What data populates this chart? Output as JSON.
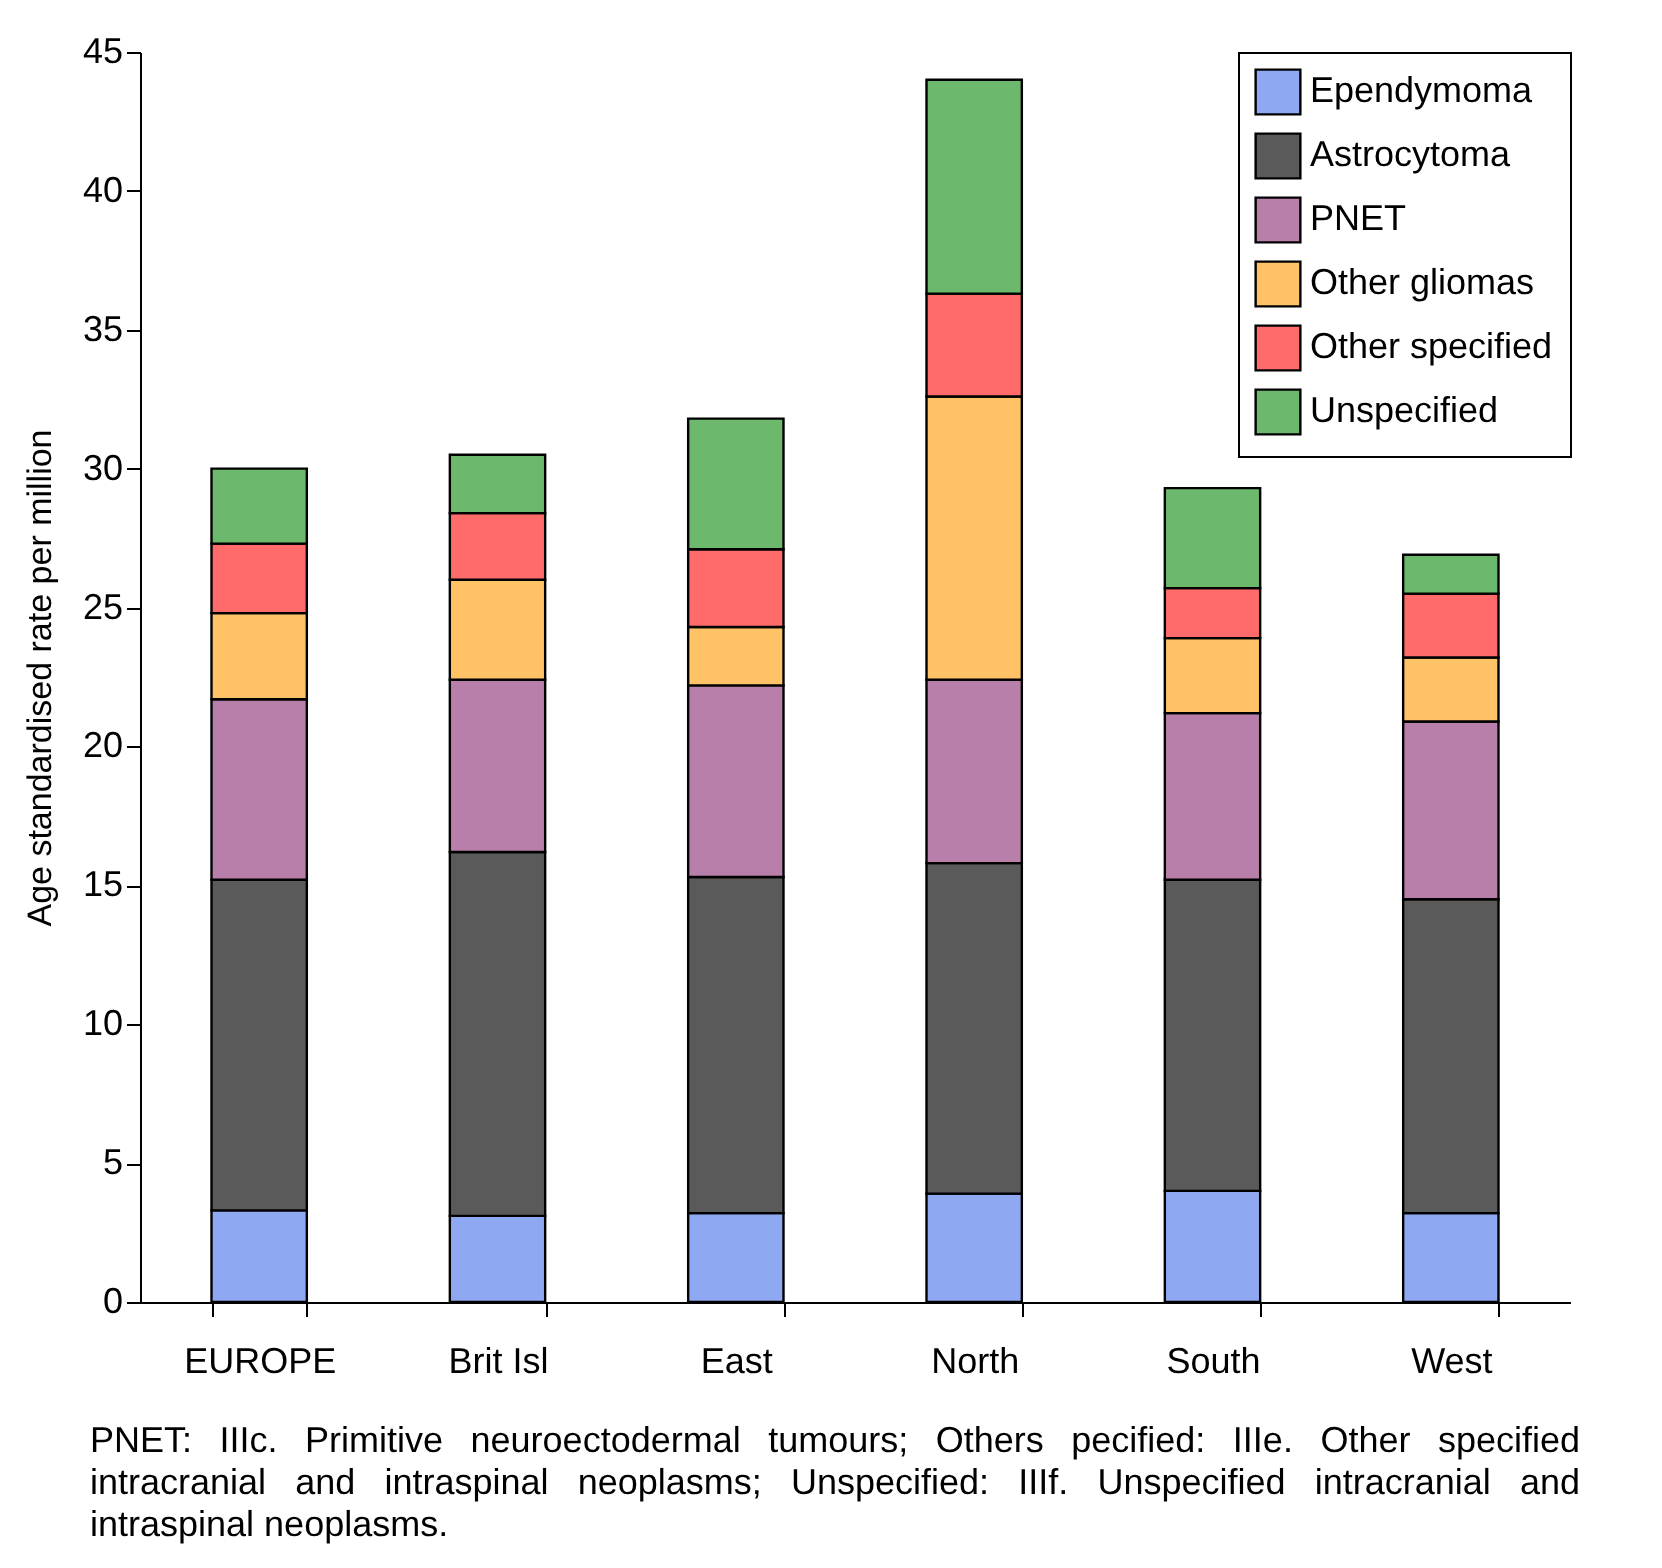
{
  "chart_data": {
    "type": "bar",
    "stacked": true,
    "ylabel": "Age standardised rate per million",
    "categories": [
      "EUROPE",
      "Brit Isl",
      "East",
      "North",
      "South",
      "West"
    ],
    "series": [
      {
        "name": "Ependymoma",
        "color": "#8fa8f2",
        "values": [
          3.3,
          3.1,
          3.2,
          3.9,
          4.0,
          3.2
        ]
      },
      {
        "name": "Astrocytoma",
        "color": "#5a5a5a",
        "values": [
          11.9,
          13.1,
          12.1,
          11.9,
          11.2,
          11.3
        ]
      },
      {
        "name": "PNET",
        "color": "#b87fab",
        "values": [
          6.5,
          6.2,
          6.9,
          6.6,
          6.0,
          6.4
        ]
      },
      {
        "name": "Other gliomas",
        "color": "#ffc266",
        "values": [
          3.1,
          3.6,
          2.1,
          10.2,
          2.7,
          2.3
        ]
      },
      {
        "name": "Other specified",
        "color": "#ff6a6a",
        "values": [
          2.5,
          2.4,
          2.8,
          3.7,
          1.8,
          2.3
        ]
      },
      {
        "name": "Unspecified",
        "color": "#6cb86c",
        "values": [
          2.7,
          2.1,
          4.7,
          7.7,
          3.6,
          1.4
        ]
      }
    ],
    "ylim": [
      0,
      45
    ],
    "yticks": [
      0,
      5,
      10,
      15,
      20,
      25,
      30,
      35,
      40,
      45
    ],
    "grid": false,
    "legend": "top right",
    "annotations": [
      "PNET: IIIc. Primitive neuroectodermal tumours; Others pecified: IIIe. Other specified intracranial and intraspinal neoplasms; Unspecified: IIIf. Unspecified intracranial and intraspinal neoplasms."
    ]
  }
}
